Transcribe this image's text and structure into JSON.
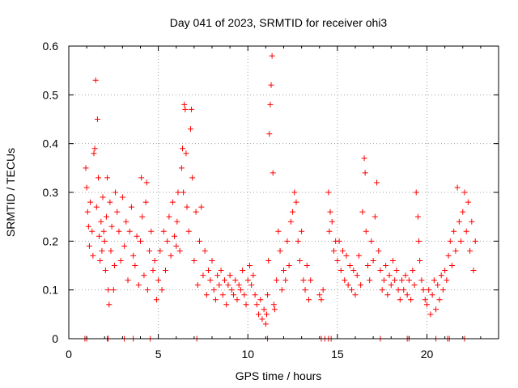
{
  "chart_data": {
    "type": "scatter",
    "title": "Day 041 of 2023, SRMTID for receiver ohi3",
    "xlabel": "GPS time / hours",
    "ylabel": "SRMTID / TECUs",
    "xlim": [
      0,
      24
    ],
    "ylim": [
      0,
      0.6
    ],
    "x_ticks": [
      {
        "value": 0,
        "label": "0"
      },
      {
        "value": 5,
        "label": "5"
      },
      {
        "value": 10,
        "label": "10"
      },
      {
        "value": 15,
        "label": "15"
      },
      {
        "value": 20,
        "label": "20"
      }
    ],
    "y_ticks": [
      {
        "value": 0,
        "label": "0"
      },
      {
        "value": 0.1,
        "label": "0.1"
      },
      {
        "value": 0.2,
        "label": "0.2"
      },
      {
        "value": 0.3,
        "label": "0.3"
      },
      {
        "value": 0.4,
        "label": "0.4"
      },
      {
        "value": 0.5,
        "label": "0.5"
      },
      {
        "value": 0.6,
        "label": "0.6"
      }
    ],
    "grid": true,
    "marker": "+",
    "series": [
      {
        "name": "SRMTID",
        "color": "#ff0000",
        "points": [
          [
            0.95,
            0.35
          ],
          [
            1.0,
            0.31
          ],
          [
            1.05,
            0.26
          ],
          [
            1.1,
            0.23
          ],
          [
            1.15,
            0.19
          ],
          [
            1.2,
            0.28
          ],
          [
            1.3,
            0.22
          ],
          [
            1.35,
            0.17
          ],
          [
            1.4,
            0.38
          ],
          [
            1.45,
            0.39
          ],
          [
            1.5,
            0.53
          ],
          [
            1.55,
            0.27
          ],
          [
            1.6,
            0.45
          ],
          [
            1.65,
            0.33
          ],
          [
            1.7,
            0.21
          ],
          [
            1.75,
            0.16
          ],
          [
            1.8,
            0.24
          ],
          [
            1.85,
            0.18
          ],
          [
            1.9,
            0.29
          ],
          [
            1.95,
            0.22
          ],
          [
            2.0,
            0.2
          ],
          [
            2.05,
            0.14
          ],
          [
            2.1,
            0.25
          ],
          [
            2.15,
            0.33
          ],
          [
            2.2,
            0.1
          ],
          [
            2.25,
            0.07
          ],
          [
            2.3,
            0.28
          ],
          [
            2.35,
            0.18
          ],
          [
            2.4,
            0.23
          ],
          [
            2.5,
            0.1
          ],
          [
            2.55,
            0.15
          ],
          [
            2.6,
            0.3
          ],
          [
            2.7,
            0.26
          ],
          [
            2.8,
            0.22
          ],
          [
            2.9,
            0.16
          ],
          [
            3.0,
            0.29
          ],
          [
            3.1,
            0.19
          ],
          [
            3.2,
            0.24
          ],
          [
            3.3,
            0.12
          ],
          [
            3.4,
            0.22
          ],
          [
            3.5,
            0.27
          ],
          [
            3.6,
            0.17
          ],
          [
            3.7,
            0.15
          ],
          [
            3.8,
            0.21
          ],
          [
            3.9,
            0.11
          ],
          [
            4.0,
            0.2
          ],
          [
            4.05,
            0.33
          ],
          [
            4.1,
            0.25
          ],
          [
            4.2,
            0.13
          ],
          [
            4.3,
            0.28
          ],
          [
            4.35,
            0.32
          ],
          [
            4.4,
            0.1
          ],
          [
            4.5,
            0.18
          ],
          [
            4.6,
            0.22
          ],
          [
            4.7,
            0.14
          ],
          [
            4.8,
            0.16
          ],
          [
            4.9,
            0.08
          ],
          [
            5.0,
            0.12
          ],
          [
            5.1,
            0.18
          ],
          [
            5.2,
            0.1
          ],
          [
            5.3,
            0.22
          ],
          [
            5.4,
            0.14
          ],
          [
            5.5,
            0.2
          ],
          [
            5.6,
            0.25
          ],
          [
            5.7,
            0.17
          ],
          [
            5.8,
            0.28
          ],
          [
            5.9,
            0.21
          ],
          [
            6.0,
            0.19
          ],
          [
            6.05,
            0.24
          ],
          [
            6.1,
            0.3
          ],
          [
            6.2,
            0.18
          ],
          [
            6.3,
            0.35
          ],
          [
            6.35,
            0.39
          ],
          [
            6.4,
            0.3
          ],
          [
            6.45,
            0.48
          ],
          [
            6.5,
            0.47
          ],
          [
            6.55,
            0.38
          ],
          [
            6.6,
            0.27
          ],
          [
            6.7,
            0.22
          ],
          [
            6.8,
            0.43
          ],
          [
            6.85,
            0.47
          ],
          [
            6.9,
            0.33
          ],
          [
            7.0,
            0.16
          ],
          [
            7.1,
            0.26
          ],
          [
            7.2,
            0.11
          ],
          [
            7.3,
            0.2
          ],
          [
            7.4,
            0.27
          ],
          [
            7.5,
            0.13
          ],
          [
            7.6,
            0.18
          ],
          [
            7.7,
            0.09
          ],
          [
            7.8,
            0.14
          ],
          [
            7.9,
            0.12
          ],
          [
            8.0,
            0.16
          ],
          [
            8.1,
            0.1
          ],
          [
            8.2,
            0.08
          ],
          [
            8.3,
            0.13
          ],
          [
            8.4,
            0.11
          ],
          [
            8.5,
            0.14
          ],
          [
            8.6,
            0.09
          ],
          [
            8.7,
            0.12
          ],
          [
            8.8,
            0.07
          ],
          [
            8.9,
            0.11
          ],
          [
            9.0,
            0.13
          ],
          [
            9.1,
            0.1
          ],
          [
            9.2,
            0.09
          ],
          [
            9.3,
            0.12
          ],
          [
            9.4,
            0.08
          ],
          [
            9.5,
            0.11
          ],
          [
            9.6,
            0.1
          ],
          [
            9.7,
            0.14
          ],
          [
            9.8,
            0.09
          ],
          [
            9.9,
            0.07
          ],
          [
            10.0,
            0.12
          ],
          [
            10.1,
            0.15
          ],
          [
            10.2,
            0.11
          ],
          [
            10.3,
            0.13
          ],
          [
            10.4,
            0.09
          ],
          [
            10.5,
            0.07
          ],
          [
            10.6,
            0.05
          ],
          [
            10.7,
            0.08
          ],
          [
            10.8,
            0.04
          ],
          [
            10.9,
            0.06
          ],
          [
            11.0,
            0.03
          ],
          [
            11.05,
            0.05
          ],
          [
            11.1,
            0.09
          ],
          [
            11.15,
            0.16
          ],
          [
            11.2,
            0.42
          ],
          [
            11.25,
            0.48
          ],
          [
            11.3,
            0.52
          ],
          [
            11.35,
            0.58
          ],
          [
            11.4,
            0.34
          ],
          [
            11.45,
            0.07
          ],
          [
            11.5,
            0.06
          ],
          [
            11.6,
            0.12
          ],
          [
            11.7,
            0.22
          ],
          [
            11.8,
            0.18
          ],
          [
            11.9,
            0.1
          ],
          [
            12.0,
            0.14
          ],
          [
            12.1,
            0.12
          ],
          [
            12.2,
            0.2
          ],
          [
            12.3,
            0.15
          ],
          [
            12.4,
            0.24
          ],
          [
            12.5,
            0.26
          ],
          [
            12.6,
            0.3
          ],
          [
            12.7,
            0.28
          ],
          [
            12.8,
            0.2
          ],
          [
            12.9,
            0.16
          ],
          [
            13.0,
            0.22
          ],
          [
            13.1,
            0.12
          ],
          [
            13.2,
            0.1
          ],
          [
            13.3,
            0.15
          ],
          [
            13.4,
            0.08
          ],
          [
            13.5,
            0.12
          ],
          [
            14.0,
            0.09
          ],
          [
            14.1,
            0.08
          ],
          [
            14.2,
            0.1
          ],
          [
            14.5,
            0.3
          ],
          [
            14.55,
            0.22
          ],
          [
            14.6,
            0.26
          ],
          [
            14.7,
            0.24
          ],
          [
            14.8,
            0.18
          ],
          [
            14.9,
            0.2
          ],
          [
            15.0,
            0.16
          ],
          [
            15.1,
            0.2
          ],
          [
            15.2,
            0.14
          ],
          [
            15.3,
            0.18
          ],
          [
            15.4,
            0.12
          ],
          [
            15.5,
            0.17
          ],
          [
            15.6,
            0.11
          ],
          [
            15.7,
            0.15
          ],
          [
            15.8,
            0.1
          ],
          [
            15.9,
            0.14
          ],
          [
            16.0,
            0.09
          ],
          [
            16.1,
            0.13
          ],
          [
            16.2,
            0.17
          ],
          [
            16.3,
            0.11
          ],
          [
            16.4,
            0.26
          ],
          [
            16.5,
            0.37
          ],
          [
            16.55,
            0.34
          ],
          [
            16.6,
            0.22
          ],
          [
            16.7,
            0.15
          ],
          [
            16.8,
            0.12
          ],
          [
            16.9,
            0.2
          ],
          [
            17.0,
            0.16
          ],
          [
            17.1,
            0.25
          ],
          [
            17.2,
            0.32
          ],
          [
            17.3,
            0.18
          ],
          [
            17.4,
            0.14
          ],
          [
            17.5,
            0.1
          ],
          [
            17.6,
            0.12
          ],
          [
            17.7,
            0.15
          ],
          [
            17.8,
            0.09
          ],
          [
            17.9,
            0.13
          ],
          [
            18.0,
            0.11
          ],
          [
            18.1,
            0.16
          ],
          [
            18.2,
            0.12
          ],
          [
            18.3,
            0.14
          ],
          [
            18.4,
            0.1
          ],
          [
            18.5,
            0.08
          ],
          [
            18.6,
            0.12
          ],
          [
            18.7,
            0.1
          ],
          [
            18.8,
            0.13
          ],
          [
            18.9,
            0.09
          ],
          [
            19.0,
            0.12
          ],
          [
            19.1,
            0.08
          ],
          [
            19.2,
            0.14
          ],
          [
            19.3,
            0.11
          ],
          [
            19.4,
            0.3
          ],
          [
            19.5,
            0.25
          ],
          [
            19.55,
            0.2
          ],
          [
            19.6,
            0.16
          ],
          [
            19.7,
            0.12
          ],
          [
            19.8,
            0.1
          ],
          [
            19.9,
            0.08
          ],
          [
            20.0,
            0.07
          ],
          [
            20.1,
            0.1
          ],
          [
            20.2,
            0.05
          ],
          [
            20.3,
            0.09
          ],
          [
            20.4,
            0.12
          ],
          [
            20.5,
            0.06
          ],
          [
            20.6,
            0.11
          ],
          [
            20.7,
            0.08
          ],
          [
            20.8,
            0.13
          ],
          [
            20.9,
            0.1
          ],
          [
            21.0,
            0.14
          ],
          [
            21.1,
            0.12
          ],
          [
            21.2,
            0.17
          ],
          [
            21.3,
            0.2
          ],
          [
            21.4,
            0.15
          ],
          [
            21.5,
            0.22
          ],
          [
            21.6,
            0.18
          ],
          [
            21.7,
            0.31
          ],
          [
            21.8,
            0.24
          ],
          [
            21.9,
            0.2
          ],
          [
            22.0,
            0.26
          ],
          [
            22.1,
            0.3
          ],
          [
            22.2,
            0.22
          ],
          [
            22.3,
            0.28
          ],
          [
            22.4,
            0.18
          ],
          [
            22.5,
            0.24
          ],
          [
            22.6,
            0.14
          ],
          [
            22.7,
            0.2
          ]
        ],
        "zero_points": [
          0.9,
          1.0,
          2.15,
          2.2,
          3.1,
          3.6,
          4.55,
          7.15,
          11.1,
          14.1,
          14.3,
          14.5,
          14.65,
          17.4,
          18.9,
          19.0,
          20.5,
          21.15,
          21.25,
          22.1
        ]
      }
    ]
  }
}
